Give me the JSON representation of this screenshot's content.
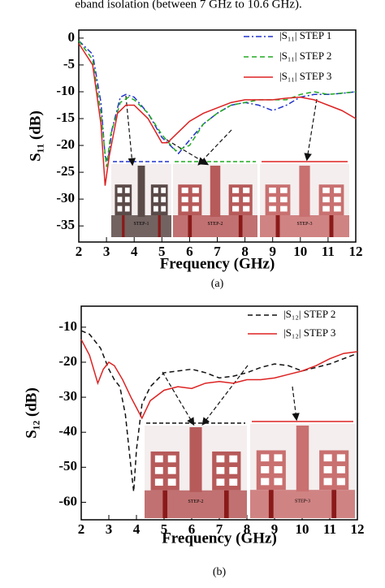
{
  "header_text": "eband isolation (between 7 GHz to 10.6 GHz).",
  "chart_data": [
    {
      "type": "line",
      "xlabel": "Frequency (GHz)",
      "ylabel": "S₁₁ (dB)",
      "caption": "(a)",
      "xlim": [
        2,
        12
      ],
      "xticks": [
        2,
        3,
        4,
        5,
        6,
        7,
        8,
        9,
        10,
        11,
        12
      ],
      "ylim": [
        -38,
        1.5
      ],
      "yticks": [
        0,
        -5,
        -10,
        -15,
        -20,
        -25,
        -30,
        -35
      ],
      "legend": "upper right",
      "series": [
        {
          "name": "|S₁₁| STEP 1",
          "color": "#2233cc",
          "dash": "dashdot",
          "x": [
            2,
            2.5,
            2.8,
            2.95,
            3.05,
            3.2,
            3.5,
            3.7,
            4,
            4.5,
            5,
            5.3,
            5.6,
            6,
            6.5,
            7,
            7.5,
            8,
            8.5,
            9,
            9.5,
            10,
            10.5,
            11,
            11.5,
            12
          ],
          "values": [
            -0.5,
            -3,
            -12,
            -22,
            -23,
            -17,
            -11,
            -10.5,
            -11,
            -14,
            -18.5,
            -20,
            -21.5,
            -19,
            -16,
            -14,
            -12.5,
            -12,
            -12.5,
            -13.5,
            -12.5,
            -11,
            -10.5,
            -10.5,
            -10.3,
            -10
          ]
        },
        {
          "name": "|S₁₁| STEP 2",
          "color": "#22aa22",
          "dash": "dashed",
          "x": [
            2,
            2.5,
            2.8,
            3,
            3.15,
            3.5,
            3.8,
            4,
            4.5,
            5,
            5.5,
            6,
            6.5,
            7,
            7.5,
            8,
            8.5,
            9,
            9.5,
            10,
            10.5,
            11,
            12
          ],
          "values": [
            -0.5,
            -4,
            -14,
            -24,
            -18,
            -12,
            -11,
            -11.5,
            -14,
            -18,
            -21,
            -20,
            -16,
            -14,
            -12.5,
            -12,
            -11.5,
            -11.5,
            -11.5,
            -10.5,
            -10,
            -10.5,
            -10
          ]
        },
        {
          "name": "|S₁₁| STEP 3",
          "color": "#dd2222",
          "dash": "solid",
          "x": [
            2,
            2.5,
            2.8,
            2.95,
            3.1,
            3.4,
            3.7,
            4,
            4.5,
            5,
            5.2,
            5.5,
            6,
            6.5,
            7,
            7.5,
            8,
            8.5,
            9,
            9.5,
            10,
            10.5,
            11,
            11.5,
            12
          ],
          "values": [
            -1,
            -5,
            -16,
            -27.5,
            -22,
            -14,
            -12.5,
            -12.5,
            -15,
            -19.5,
            -19.5,
            -18,
            -15.5,
            -14,
            -13,
            -12,
            -11.5,
            -11.5,
            -11.5,
            -11.2,
            -11,
            -11.5,
            -12.5,
            -13.5,
            -15
          ]
        }
      ],
      "insets": [
        {
          "label": "STEP-1"
        },
        {
          "label": "STEP-2"
        },
        {
          "label": "STEP-3"
        }
      ]
    },
    {
      "type": "line",
      "xlabel": "Frequency (GHz)",
      "ylabel": "S₁₂ (dB)",
      "caption": "(b)",
      "xlim": [
        2,
        12
      ],
      "xticks": [
        2,
        3,
        4,
        5,
        6,
        7,
        8,
        9,
        10,
        11,
        12
      ],
      "ylim": [
        -65,
        -4
      ],
      "yticks": [
        -10,
        -20,
        -30,
        -40,
        -50,
        -60
      ],
      "legend": "upper right",
      "series": [
        {
          "name": "|S₁₂| STEP 2",
          "color": "#111111",
          "dash": "dashed",
          "x": [
            2,
            2.3,
            2.7,
            3,
            3.2,
            3.4,
            3.6,
            3.8,
            3.9,
            4,
            4.2,
            4.5,
            5,
            5.5,
            6,
            6.5,
            7,
            7.5,
            8,
            8.5,
            9,
            9.5,
            10,
            10.5,
            11,
            11.5,
            12
          ],
          "values": [
            -11,
            -12,
            -16,
            -22,
            -25,
            -27,
            -35,
            -50,
            -57,
            -45,
            -32,
            -27,
            -23,
            -22.5,
            -22,
            -23,
            -24.5,
            -24,
            -23,
            -21.5,
            -20.5,
            -21,
            -22.5,
            -21.5,
            -20.5,
            -19,
            -17.5
          ]
        },
        {
          "name": "|S₁₂| STEP 3",
          "color": "#dd2222",
          "dash": "solid",
          "x": [
            2,
            2.3,
            2.6,
            2.8,
            3,
            3.2,
            3.5,
            3.8,
            4,
            4.2,
            4.5,
            5,
            5.5,
            6,
            6.5,
            7,
            7.5,
            8,
            8.5,
            9,
            9.5,
            10,
            10.5,
            11,
            11.5,
            12
          ],
          "values": [
            -13.5,
            -18,
            -26,
            -22,
            -20,
            -21,
            -25,
            -30,
            -33,
            -36,
            -31,
            -28,
            -27,
            -27.5,
            -26,
            -25.5,
            -26,
            -25,
            -25,
            -24.5,
            -23.5,
            -22.5,
            -21,
            -19,
            -17.5,
            -17
          ]
        }
      ],
      "insets": [
        {
          "label": "STEP-2"
        },
        {
          "label": "STEP-3"
        }
      ]
    }
  ]
}
